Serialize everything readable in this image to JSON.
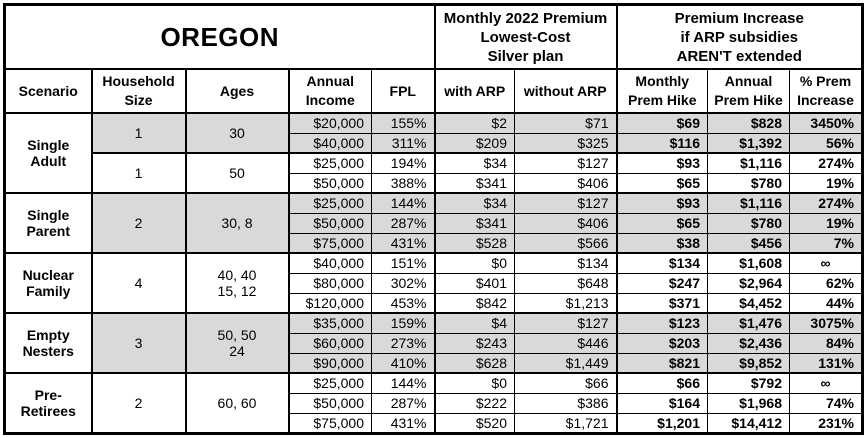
{
  "colors": {
    "shaded_row": "#d9d9d9",
    "border": "#000000",
    "background": "#ffffff",
    "text": "#000000"
  },
  "chart_data": {
    "type": "table",
    "title": "OREGON",
    "column_groups": [
      {
        "label": "",
        "span": 5
      },
      {
        "label": "Monthly 2022 Premium\nLowest-Cost\nSilver plan",
        "span": 2
      },
      {
        "label": "Premium Increase\nif ARP subsidies\nAREN'T extended",
        "span": 3
      }
    ],
    "columns": [
      "Scenario",
      "Household\nSize",
      "Ages",
      "Annual\nIncome",
      "FPL",
      "with ARP",
      "without ARP",
      "Monthly\nPrem Hike",
      "Annual\nPrem Hike",
      "% Prem\nIncrease"
    ],
    "groups": [
      {
        "scenario": "Single\nAdult",
        "subgroups": [
          {
            "household_size": "1",
            "ages": "30",
            "shaded": true,
            "rows": [
              {
                "income": "$20,000",
                "fpl": "155%",
                "with_arp": "$2",
                "without_arp": "$71",
                "monthly_hike": "$69",
                "annual_hike": "$828",
                "pct_increase": "3450%"
              },
              {
                "income": "$40,000",
                "fpl": "311%",
                "with_arp": "$209",
                "without_arp": "$325",
                "monthly_hike": "$116",
                "annual_hike": "$1,392",
                "pct_increase": "56%"
              }
            ]
          },
          {
            "household_size": "1",
            "ages": "50",
            "shaded": false,
            "rows": [
              {
                "income": "$25,000",
                "fpl": "194%",
                "with_arp": "$34",
                "without_arp": "$127",
                "monthly_hike": "$93",
                "annual_hike": "$1,116",
                "pct_increase": "274%"
              },
              {
                "income": "$50,000",
                "fpl": "388%",
                "with_arp": "$341",
                "without_arp": "$406",
                "monthly_hike": "$65",
                "annual_hike": "$780",
                "pct_increase": "19%"
              }
            ]
          }
        ]
      },
      {
        "scenario": "Single\nParent",
        "subgroups": [
          {
            "household_size": "2",
            "ages": "30, 8",
            "shaded": true,
            "rows": [
              {
                "income": "$25,000",
                "fpl": "144%",
                "with_arp": "$34",
                "without_arp": "$127",
                "monthly_hike": "$93",
                "annual_hike": "$1,116",
                "pct_increase": "274%"
              },
              {
                "income": "$50,000",
                "fpl": "287%",
                "with_arp": "$341",
                "without_arp": "$406",
                "monthly_hike": "$65",
                "annual_hike": "$780",
                "pct_increase": "19%"
              },
              {
                "income": "$75,000",
                "fpl": "431%",
                "with_arp": "$528",
                "without_arp": "$566",
                "monthly_hike": "$38",
                "annual_hike": "$456",
                "pct_increase": "7%"
              }
            ]
          }
        ]
      },
      {
        "scenario": "Nuclear\nFamily",
        "subgroups": [
          {
            "household_size": "4",
            "ages": "40, 40\n15, 12",
            "shaded": false,
            "rows": [
              {
                "income": "$40,000",
                "fpl": "151%",
                "with_arp": "$0",
                "without_arp": "$134",
                "monthly_hike": "$134",
                "annual_hike": "$1,608",
                "pct_increase": "∞"
              },
              {
                "income": "$80,000",
                "fpl": "302%",
                "with_arp": "$401",
                "without_arp": "$648",
                "monthly_hike": "$247",
                "annual_hike": "$2,964",
                "pct_increase": "62%"
              },
              {
                "income": "$120,000",
                "fpl": "453%",
                "with_arp": "$842",
                "without_arp": "$1,213",
                "monthly_hike": "$371",
                "annual_hike": "$4,452",
                "pct_increase": "44%"
              }
            ]
          }
        ]
      },
      {
        "scenario": "Empty\nNesters",
        "subgroups": [
          {
            "household_size": "3",
            "ages": "50, 50\n24",
            "shaded": true,
            "rows": [
              {
                "income": "$35,000",
                "fpl": "159%",
                "with_arp": "$4",
                "without_arp": "$127",
                "monthly_hike": "$123",
                "annual_hike": "$1,476",
                "pct_increase": "3075%"
              },
              {
                "income": "$60,000",
                "fpl": "273%",
                "with_arp": "$243",
                "without_arp": "$446",
                "monthly_hike": "$203",
                "annual_hike": "$2,436",
                "pct_increase": "84%"
              },
              {
                "income": "$90,000",
                "fpl": "410%",
                "with_arp": "$628",
                "without_arp": "$1,449",
                "monthly_hike": "$821",
                "annual_hike": "$9,852",
                "pct_increase": "131%"
              }
            ]
          }
        ]
      },
      {
        "scenario": "Pre-\nRetirees",
        "subgroups": [
          {
            "household_size": "2",
            "ages": "60, 60",
            "shaded": false,
            "rows": [
              {
                "income": "$25,000",
                "fpl": "144%",
                "with_arp": "$0",
                "without_arp": "$66",
                "monthly_hike": "$66",
                "annual_hike": "$792",
                "pct_increase": "∞"
              },
              {
                "income": "$50,000",
                "fpl": "287%",
                "with_arp": "$222",
                "without_arp": "$386",
                "monthly_hike": "$164",
                "annual_hike": "$1,968",
                "pct_increase": "74%"
              },
              {
                "income": "$75,000",
                "fpl": "431%",
                "with_arp": "$520",
                "without_arp": "$1,721",
                "monthly_hike": "$1,201",
                "annual_hike": "$14,412",
                "pct_increase": "231%"
              }
            ]
          }
        ]
      }
    ]
  }
}
